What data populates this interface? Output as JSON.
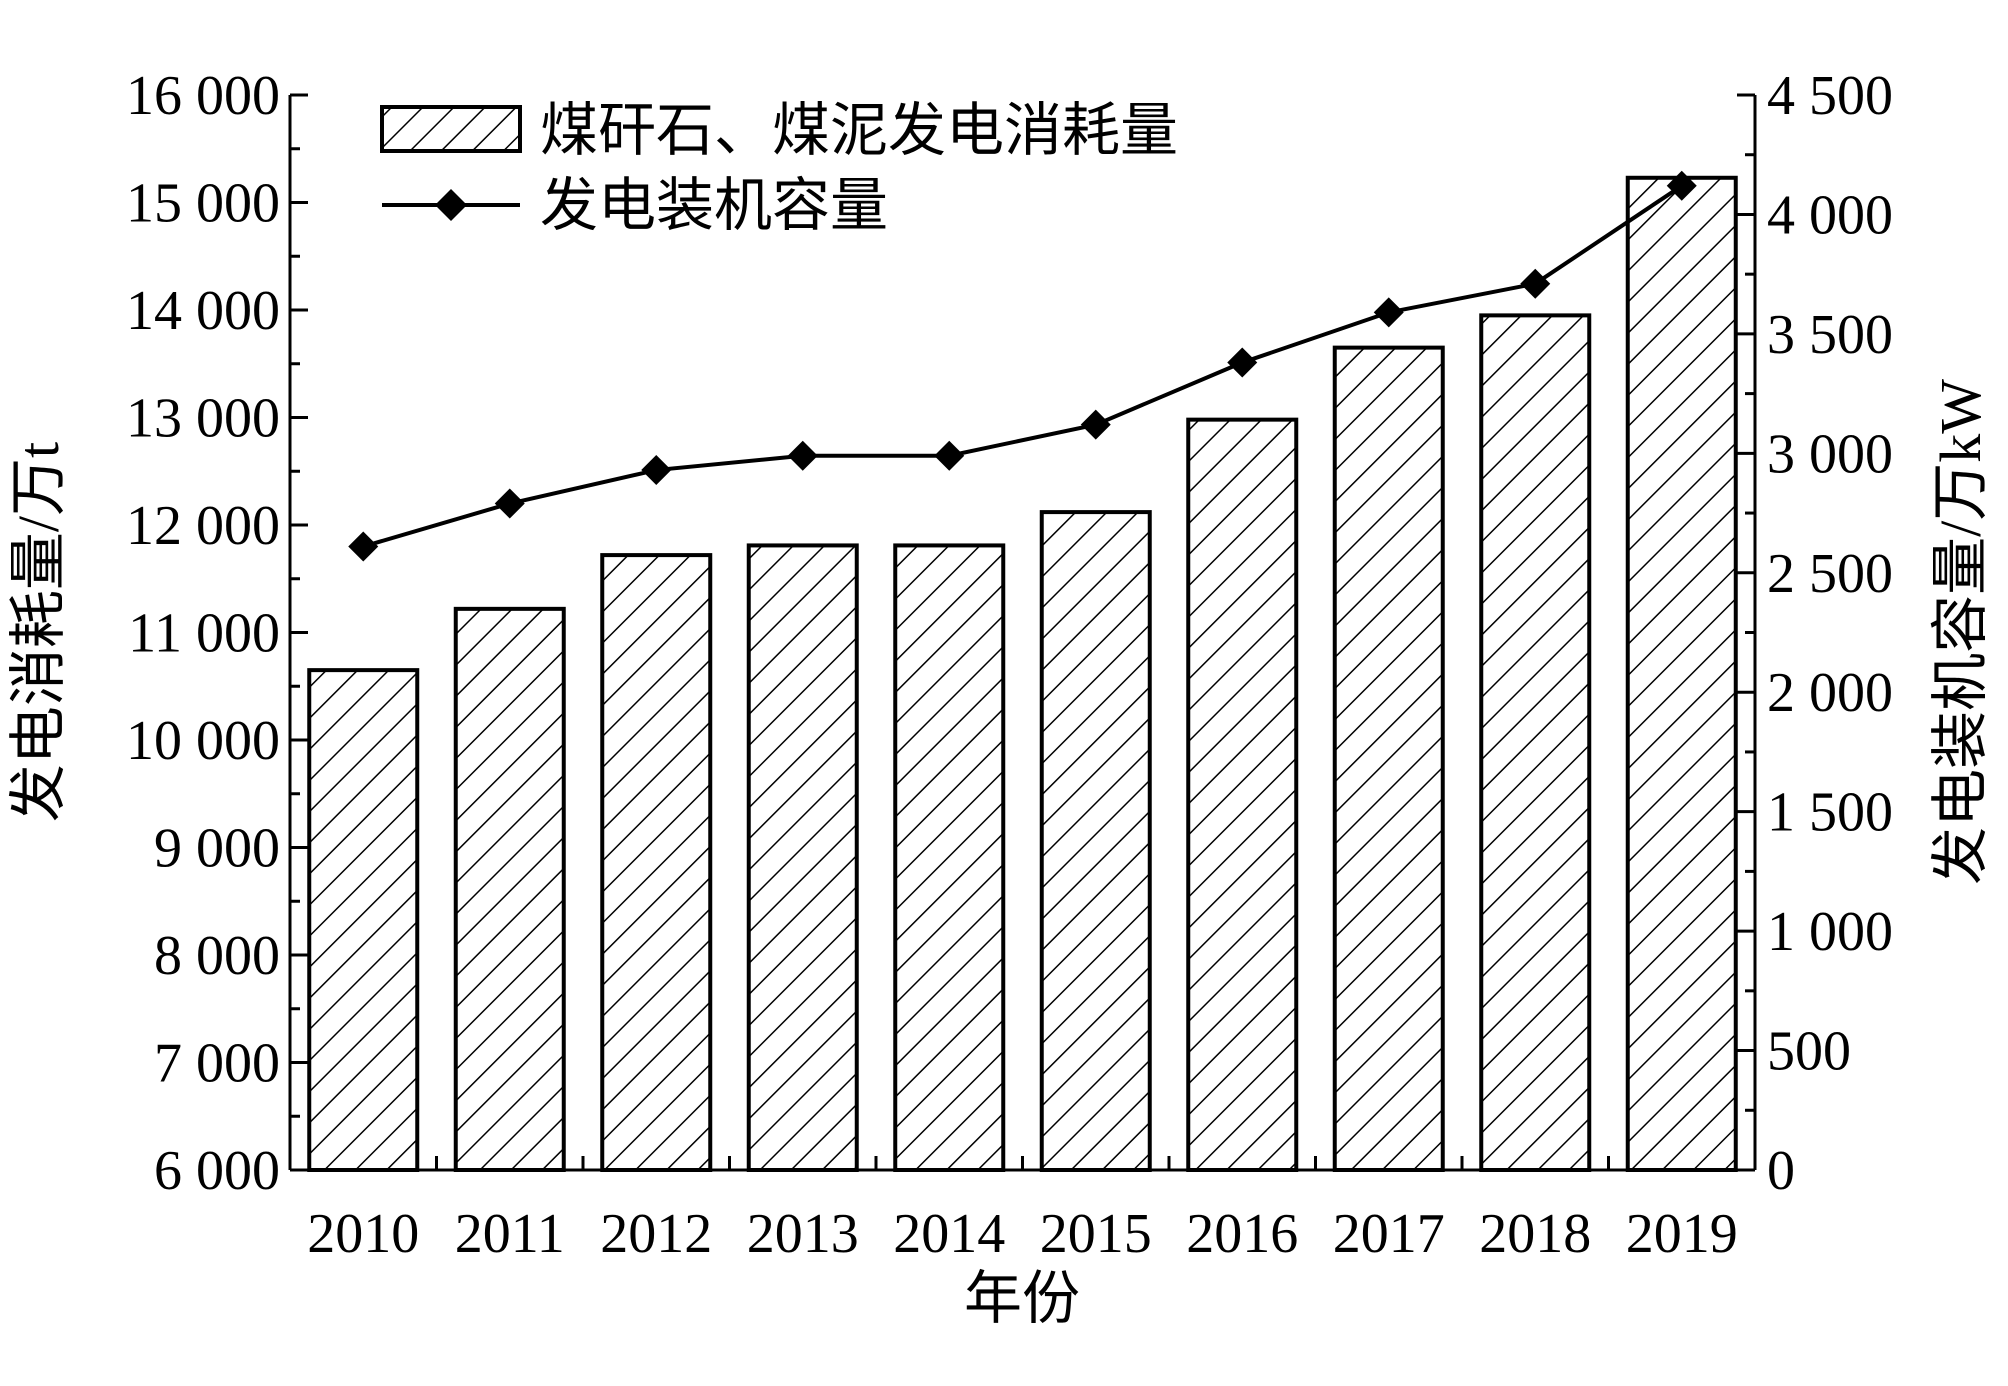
{
  "chart_data": {
    "type": "bar",
    "categories": [
      "2010",
      "2011",
      "2012",
      "2013",
      "2014",
      "2015",
      "2016",
      "2017",
      "2018",
      "2019"
    ],
    "series": [
      {
        "name": "煤矸石、煤泥发电消耗量",
        "type": "bar",
        "axis": "left",
        "pattern": "diagonal-hatch",
        "values": [
          10650,
          11220,
          11720,
          11810,
          11810,
          12120,
          12980,
          13650,
          13950,
          15230
        ]
      },
      {
        "name": "发电装机容量",
        "type": "line",
        "axis": "right",
        "marker": "diamond",
        "values": [
          2610,
          2790,
          2930,
          2990,
          2990,
          3120,
          3380,
          3590,
          3710,
          4120
        ]
      }
    ],
    "xlabel": "年份",
    "ylabel_left": "发电消耗量/万t",
    "ylabel_right": "发电装机容量/万kW",
    "ylim_left": [
      6000,
      16000
    ],
    "ylim_right": [
      0,
      4500
    ],
    "yticks_left": [
      {
        "v": 6000,
        "label": "6 000"
      },
      {
        "v": 7000,
        "label": "7 000"
      },
      {
        "v": 8000,
        "label": "8 000"
      },
      {
        "v": 9000,
        "label": "9 000"
      },
      {
        "v": 10000,
        "label": "10 000"
      },
      {
        "v": 11000,
        "label": "11 000"
      },
      {
        "v": 12000,
        "label": "12 000"
      },
      {
        "v": 13000,
        "label": "13 000"
      },
      {
        "v": 14000,
        "label": "14 000"
      },
      {
        "v": 15000,
        "label": "15 000"
      },
      {
        "v": 16000,
        "label": "16 000"
      }
    ],
    "yticks_right": [
      {
        "v": 0,
        "label": "0"
      },
      {
        "v": 500,
        "label": "500"
      },
      {
        "v": 1000,
        "label": "1 000"
      },
      {
        "v": 1500,
        "label": "1 500"
      },
      {
        "v": 2000,
        "label": "2 000"
      },
      {
        "v": 2500,
        "label": "2 500"
      },
      {
        "v": 3000,
        "label": "3 000"
      },
      {
        "v": 3500,
        "label": "3 500"
      },
      {
        "v": 4000,
        "label": "4 000"
      },
      {
        "v": 4500,
        "label": "4 500"
      }
    ],
    "legend_position": "top-left",
    "grid": false
  }
}
